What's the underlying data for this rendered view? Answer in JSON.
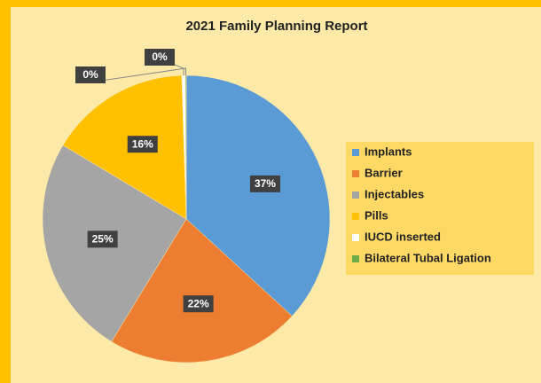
{
  "chart_data": {
    "type": "pie",
    "title": "2021 Family Planning Report",
    "categories": [
      "Implants",
      "Barrier",
      "Injectables",
      "Pills",
      "IUCD inserted",
      "Bilateral Tubal Ligation"
    ],
    "values": [
      37,
      22,
      25,
      16,
      0.4,
      0.1
    ],
    "value_labels": [
      "37%",
      "22%",
      "25%",
      "16%",
      "0%",
      "0%"
    ],
    "colors": [
      "#5b9bd5",
      "#ed7d31",
      "#a5a5a5",
      "#ffc000",
      "#ffffff",
      "#70ad47"
    ],
    "legend": "right"
  }
}
